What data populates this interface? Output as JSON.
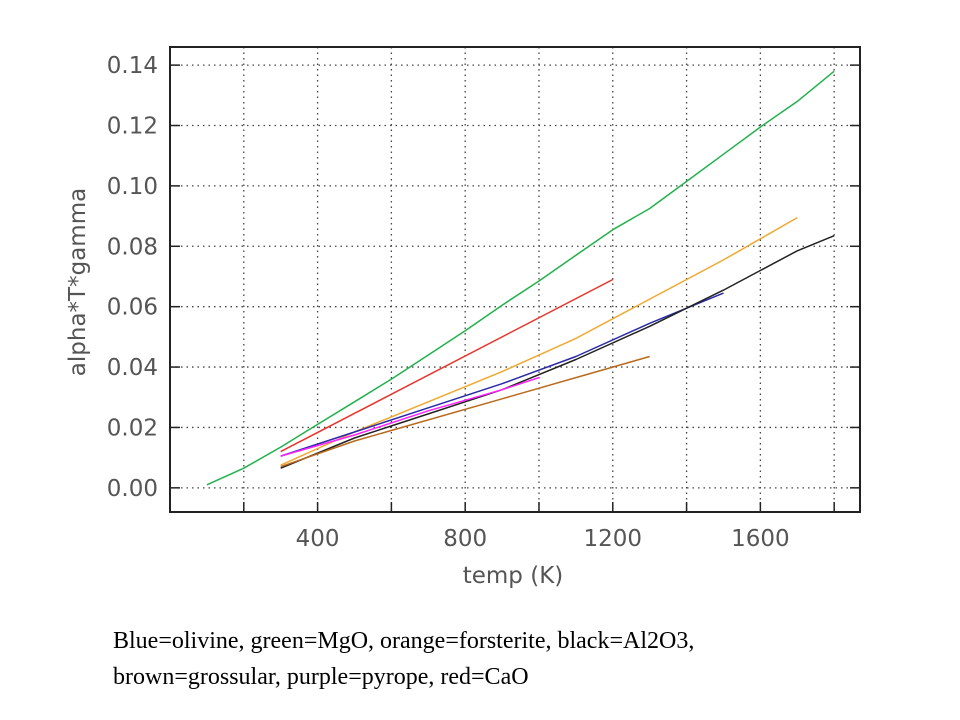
{
  "chart_data": {
    "type": "line",
    "title": "",
    "xlabel": "temp (K)",
    "ylabel": "alpha*T*gamma",
    "xlim": [
      0,
      1870
    ],
    "ylim": [
      -0.008,
      0.146
    ],
    "xticks": [
      400,
      800,
      1200,
      1600
    ],
    "xtick_labels": [
      "400",
      "800",
      "1200",
      "1600"
    ],
    "yticks": [
      0.0,
      0.02,
      0.04,
      0.06,
      0.08,
      0.1,
      0.12,
      0.14
    ],
    "ytick_labels": [
      "0.00",
      "0.02",
      "0.04",
      "0.06",
      "0.08",
      "0.10",
      "0.12",
      "0.14"
    ],
    "xgrid": [
      200,
      400,
      600,
      800,
      1000,
      1200,
      1400,
      1600,
      1800
    ],
    "grid": true,
    "series": [
      {
        "color": "#22b14c",
        "x": [
          100,
          200,
          300,
          400,
          500,
          600,
          700,
          800,
          900,
          1000,
          1100,
          1200,
          1300,
          1400,
          1500,
          1600,
          1700,
          1800
        ],
        "y": [
          0.001,
          0.0065,
          0.0135,
          0.021,
          0.0285,
          0.036,
          0.044,
          0.052,
          0.0605,
          0.0685,
          0.077,
          0.0855,
          0.0925,
          0.1015,
          0.1105,
          0.1195,
          0.128,
          0.138
        ]
      },
      {
        "color": "#e8342a",
        "x": [
          300,
          1200
        ],
        "y": [
          0.012,
          0.069
        ]
      },
      {
        "color": "#f0a830",
        "x": [
          300,
          500,
          700,
          900,
          1100,
          1300,
          1500,
          1700
        ],
        "y": [
          0.0075,
          0.0185,
          0.0285,
          0.0385,
          0.0495,
          0.0625,
          0.0755,
          0.0895
        ]
      },
      {
        "color": "#2a2aa8",
        "x": [
          300,
          500,
          700,
          900,
          1100,
          1300,
          1500
        ],
        "y": [
          0.0105,
          0.0185,
          0.0265,
          0.0345,
          0.0435,
          0.0545,
          0.0645
        ]
      },
      {
        "color": "#222222",
        "x": [
          300,
          500,
          700,
          900,
          1100,
          1300,
          1500,
          1700,
          1800
        ],
        "y": [
          0.0065,
          0.0165,
          0.0245,
          0.0325,
          0.0425,
          0.0535,
          0.0655,
          0.0785,
          0.0835
        ]
      },
      {
        "color": "#b86a1e",
        "x": [
          300,
          500,
          700,
          900,
          1100,
          1300
        ],
        "y": [
          0.007,
          0.0155,
          0.0225,
          0.0295,
          0.0365,
          0.0435
        ]
      },
      {
        "color": "#ff22ff",
        "x": [
          300,
          500,
          700,
          900,
          1000
        ],
        "y": [
          0.0105,
          0.0175,
          0.0255,
          0.0325,
          0.0365
        ]
      }
    ]
  },
  "caption": {
    "line1": "Blue=olivine, green=MgO, orange=forsterite, black=Al2O3,",
    "line2": "brown=grossular, purple=pyrope, red=CaO"
  },
  "colors": {
    "frame": "#222222",
    "grid": "#444444",
    "text": "#555555"
  }
}
